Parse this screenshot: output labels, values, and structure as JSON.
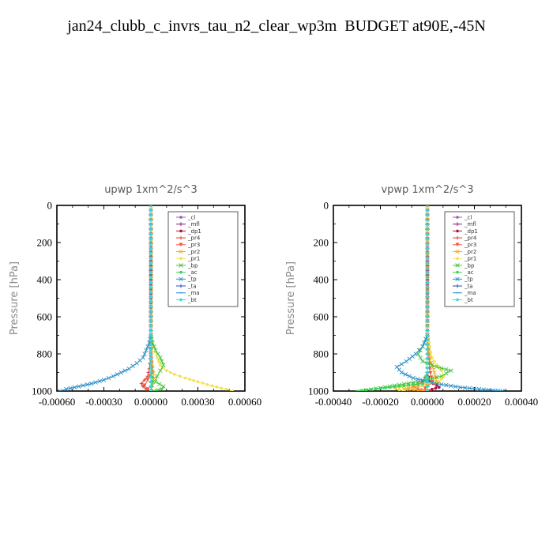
{
  "page": {
    "title": "jan24_clubb_c_invrs_tau_n2_clear_wp3m  BUDGET at90E,-45N"
  },
  "chart_data": [
    {
      "type": "line",
      "title": "upwp   1xm^2/s^3",
      "ylabel": "Pressure [hPa]",
      "xlim": [
        -0.0006,
        0.0006
      ],
      "ylim": [
        1000,
        0
      ],
      "xticks": [
        "-0.00060",
        "-0.00030",
        "0.00000",
        "0.00030",
        "0.00060"
      ],
      "xtick_values": [
        -0.0006,
        -0.0003,
        0,
        0.0003,
        0.0006
      ],
      "yticks": [
        "0",
        "200",
        "400",
        "600",
        "800",
        "1000"
      ],
      "ytick_values": [
        0,
        200,
        400,
        600,
        800,
        1000
      ],
      "legend_position": "top-right",
      "series": [
        {
          "name": "_cl",
          "color": "#9b59b6",
          "marker": "o",
          "x": [
            0,
            0,
            0,
            0,
            0
          ],
          "y": [
            0,
            500,
            700,
            900,
            1000
          ]
        },
        {
          "name": "_mfl",
          "color": "#8e1d6e",
          "marker": "+",
          "x": [
            0,
            0,
            0,
            0,
            0
          ],
          "y": [
            0,
            500,
            700,
            900,
            1000
          ]
        },
        {
          "name": "_dp1",
          "color": "#b0103a",
          "marker": "o",
          "x": [
            0,
            0,
            0,
            0,
            0
          ],
          "y": [
            0,
            500,
            700,
            900,
            1000
          ]
        },
        {
          "name": "_pr4",
          "color": "#e8352a",
          "marker": "+",
          "x": [
            0,
            0,
            0,
            -1e-05,
            -2e-05,
            -6e-05,
            -5e-05,
            -3e-05,
            1e-05
          ],
          "y": [
            0,
            700,
            800,
            880,
            920,
            960,
            975,
            990,
            1000
          ]
        },
        {
          "name": "_pr3",
          "color": "#f05a40",
          "marker": "v",
          "x": [
            0,
            0,
            0,
            1e-05,
            -2e-05,
            -4e-05,
            -2e-05,
            0
          ],
          "y": [
            0,
            700,
            820,
            900,
            940,
            970,
            990,
            1000
          ]
        },
        {
          "name": "_pr2",
          "color": "#f9a81b",
          "marker": "x",
          "x": [
            0,
            0,
            0,
            1e-05,
            2e-05,
            1e-05,
            0
          ],
          "y": [
            0,
            700,
            800,
            880,
            930,
            970,
            1000
          ]
        },
        {
          "name": "_pr1",
          "color": "#f5e14c",
          "marker": "o",
          "x": [
            0,
            2e-05,
            4e-05,
            6e-05,
            0.0001,
            0.00015,
            0.00022,
            0.0003,
            0.00036,
            0.00042,
            0.00048,
            0.00052
          ],
          "y": [
            700,
            760,
            820,
            860,
            890,
            910,
            930,
            950,
            965,
            978,
            990,
            1000
          ]
        },
        {
          "name": "_bp",
          "color": "#41c43a",
          "marker": "x",
          "x": [
            0,
            1e-05,
            3e-05,
            6e-05,
            8e-05,
            6e-05,
            4e-05,
            3e-05,
            8e-05,
            7e-05,
            2e-05
          ],
          "y": [
            700,
            740,
            780,
            820,
            860,
            890,
            920,
            950,
            975,
            990,
            1000
          ]
        },
        {
          "name": "_ac",
          "color": "#3ed35a",
          "marker": "o",
          "x": [
            0,
            0,
            0,
            1e-05,
            0
          ],
          "y": [
            0,
            700,
            850,
            950,
            1000
          ]
        },
        {
          "name": "_tp",
          "color": "#2a8fc8",
          "marker": "x",
          "x": [
            0,
            -1e-05,
            -3e-05,
            -5e-05,
            -9e-05,
            -0.00014,
            -0.00019,
            -0.00024,
            -0.0003,
            -0.00038,
            -0.00046,
            -0.00054,
            -0.00058
          ],
          "y": [
            700,
            740,
            780,
            820,
            850,
            880,
            900,
            920,
            940,
            960,
            975,
            990,
            1000
          ]
        },
        {
          "name": "_ta",
          "color": "#1f4fb8",
          "marker": "+",
          "x": [
            0,
            0,
            0,
            0
          ],
          "y": [
            0,
            700,
            900,
            1000
          ]
        },
        {
          "name": "_ma",
          "color": "#1e88d6",
          "marker": "-",
          "x": [
            0,
            0,
            0,
            0
          ],
          "y": [
            0,
            700,
            900,
            1000
          ]
        },
        {
          "name": "_bt",
          "color": "#3fd6d6",
          "marker": "o",
          "x": [
            0,
            0,
            0,
            0
          ],
          "y": [
            0,
            700,
            900,
            1000
          ]
        }
      ]
    },
    {
      "type": "line",
      "title": "vpwp   1xm^2/s^3",
      "ylabel": "Pressure [hPa]",
      "xlim": [
        -0.0004,
        0.0004
      ],
      "ylim": [
        1000,
        0
      ],
      "xticks": [
        "-0.00040",
        "-0.00020",
        "0.00000",
        "0.00020",
        "0.00040"
      ],
      "xtick_values": [
        -0.0004,
        -0.0002,
        0,
        0.0002,
        0.0004
      ],
      "yticks": [
        "0",
        "200",
        "400",
        "600",
        "800",
        "1000"
      ],
      "ytick_values": [
        0,
        200,
        400,
        600,
        800,
        1000
      ],
      "legend_position": "top-right",
      "series": [
        {
          "name": "_cl",
          "color": "#9b59b6",
          "marker": "o",
          "x": [
            0,
            0,
            0,
            0,
            0
          ],
          "y": [
            0,
            500,
            700,
            900,
            1000
          ]
        },
        {
          "name": "_mfl",
          "color": "#8e1d6e",
          "marker": "+",
          "x": [
            0,
            0,
            0,
            0,
            0
          ],
          "y": [
            0,
            500,
            700,
            900,
            1000
          ]
        },
        {
          "name": "_dp1",
          "color": "#b0103a",
          "marker": "o",
          "x": [
            0,
            0,
            0,
            1e-05,
            4e-05,
            5e-05,
            2e-05,
            0
          ],
          "y": [
            0,
            700,
            900,
            950,
            970,
            980,
            990,
            1000
          ]
        },
        {
          "name": "_pr4",
          "color": "#e8352a",
          "marker": "+",
          "x": [
            0,
            0,
            0,
            -2e-05,
            -6e-05,
            -4e-05,
            1e-05
          ],
          "y": [
            0,
            700,
            900,
            950,
            975,
            990,
            1000
          ]
        },
        {
          "name": "_pr3",
          "color": "#f05a40",
          "marker": "v",
          "x": [
            0,
            0,
            1e-05,
            2e-05,
            -1e-05,
            0
          ],
          "y": [
            0,
            700,
            880,
            950,
            985,
            1000
          ]
        },
        {
          "name": "_pr2",
          "color": "#f9a81b",
          "marker": "x",
          "x": [
            0,
            0,
            1e-05,
            3e-05,
            4e-05,
            -4e-05,
            -0.0001,
            0
          ],
          "y": [
            0,
            700,
            820,
            900,
            950,
            975,
            990,
            1000
          ]
        },
        {
          "name": "_pr1",
          "color": "#f5e14c",
          "marker": "o",
          "x": [
            0,
            1e-05,
            2e-05,
            4e-05,
            6e-05,
            7e-05,
            5e-05,
            -8e-05,
            -0.00014,
            -0.0001
          ],
          "y": [
            700,
            760,
            820,
            860,
            890,
            920,
            950,
            970,
            985,
            1000
          ]
        },
        {
          "name": "_bp",
          "color": "#41c43a",
          "marker": "x",
          "x": [
            0,
            -2e-05,
            -4e-05,
            -2e-05,
            4e-05,
            0.0001,
            6e-05,
            -4e-05,
            -0.00016,
            -0.00028
          ],
          "y": [
            700,
            760,
            800,
            840,
            870,
            890,
            920,
            950,
            975,
            1000
          ]
        },
        {
          "name": "_ac",
          "color": "#3ed35a",
          "marker": "o",
          "x": [
            0,
            0,
            0,
            -2e-05,
            -0.0002,
            -0.0003
          ],
          "y": [
            0,
            700,
            900,
            960,
            985,
            1000
          ]
        },
        {
          "name": "_tp",
          "color": "#2a8fc8",
          "marker": "x",
          "x": [
            0,
            -2e-05,
            -5e-05,
            -9e-05,
            -0.00013,
            -0.00011,
            -6e-05,
            4e-05,
            0.00014,
            0.00024,
            0.00032
          ],
          "y": [
            700,
            760,
            800,
            840,
            870,
            900,
            930,
            960,
            980,
            992,
            1000
          ]
        },
        {
          "name": "_ta",
          "color": "#1f4fb8",
          "marker": "+",
          "x": [
            0,
            0,
            0,
            0
          ],
          "y": [
            0,
            700,
            900,
            1000
          ]
        },
        {
          "name": "_ma",
          "color": "#1e88d6",
          "marker": "-",
          "x": [
            0,
            0,
            0,
            0
          ],
          "y": [
            0,
            700,
            900,
            1000
          ]
        },
        {
          "name": "_bt",
          "color": "#3fd6d6",
          "marker": "o",
          "x": [
            0,
            0,
            0,
            0
          ],
          "y": [
            0,
            700,
            900,
            1000
          ]
        }
      ]
    }
  ]
}
